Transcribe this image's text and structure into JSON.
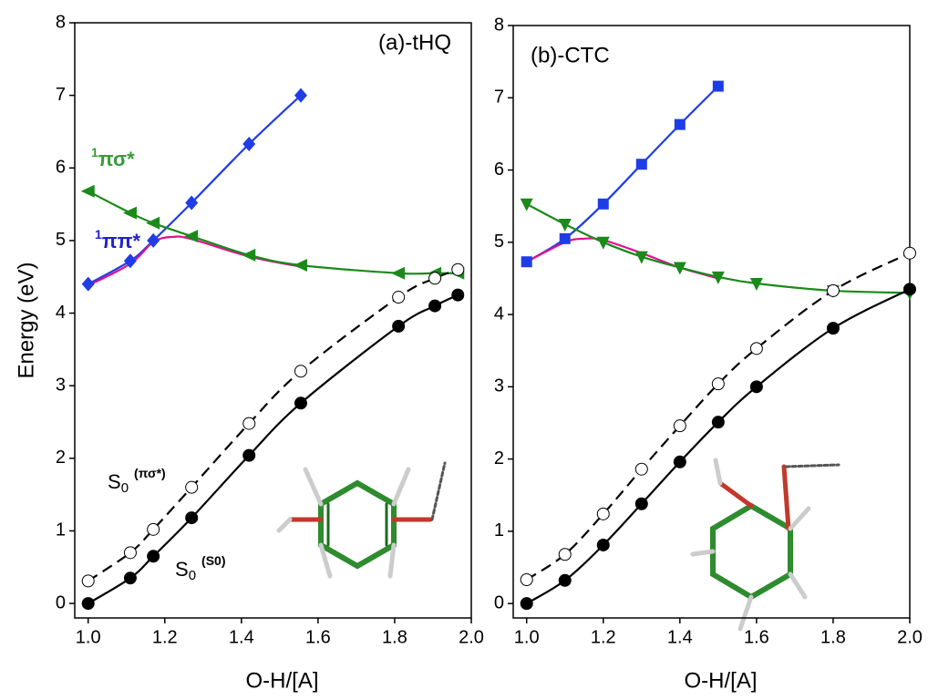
{
  "chart_data": [
    {
      "type": "line",
      "title": "(a)-tHQ",
      "xlabel": "O-H/[A]",
      "ylabel": "Energy (eV)",
      "xlim": [
        0.965,
        2.0
      ],
      "ylim": [
        -0.2,
        8
      ],
      "xticks": [
        {
          "value": 1,
          "label": "1.0"
        },
        {
          "value": 1.2,
          "label": "1.2"
        },
        {
          "value": 1.4,
          "label": "1.4"
        },
        {
          "value": 1.6,
          "label": "1.6"
        },
        {
          "value": 1.8,
          "label": "1.8"
        },
        {
          "value": 2,
          "label": "2.0"
        }
      ],
      "yticks": [
        0,
        1,
        2,
        3,
        4,
        5,
        6,
        7,
        8
      ],
      "series": [
        {
          "color": "#1f3de6",
          "marker": "diamond",
          "x": [
            1.0,
            1.11,
            1.17,
            1.27,
            1.42,
            1.555
          ],
          "values": [
            4.4,
            4.72,
            5.0,
            5.52,
            6.33,
            7.0
          ]
        },
        {
          "color": "#e0108f",
          "marker": "none",
          "x": [
            1.0,
            1.11,
            1.17,
            1.22,
            1.27,
            1.42,
            1.555
          ],
          "values": [
            4.38,
            4.68,
            4.98,
            5.05,
            5.02,
            4.78,
            4.64
          ]
        },
        {
          "color": "#1a8a1a",
          "marker": "triangle-left",
          "x": [
            1.0,
            1.11,
            1.17,
            1.27,
            1.42,
            1.555,
            1.81,
            1.905,
            1.965
          ],
          "values": [
            5.68,
            5.38,
            5.24,
            5.06,
            4.8,
            4.66,
            4.55,
            4.55,
            4.55
          ]
        },
        {
          "color": "#000000",
          "marker": "circle-open",
          "dash": true,
          "x": [
            1.0,
            1.11,
            1.17,
            1.27,
            1.42,
            1.555,
            1.81,
            1.905,
            1.965
          ],
          "values": [
            0.31,
            0.7,
            1.02,
            1.6,
            2.48,
            3.2,
            4.22,
            4.48,
            4.6
          ]
        },
        {
          "color": "#000000",
          "marker": "circle",
          "x": [
            1.0,
            1.11,
            1.17,
            1.27,
            1.42,
            1.555,
            1.81,
            1.905,
            1.965
          ],
          "values": [
            0.0,
            0.35,
            0.65,
            1.18,
            2.04,
            2.76,
            3.82,
            4.1,
            4.25
          ]
        }
      ],
      "annotations": [
        {
          "sup_before": "1",
          "text": "πσ*",
          "color": "#3a9a3a"
        },
        {
          "sup_before": "1",
          "text": "ππ*",
          "color": "#2222cc"
        },
        {
          "text": "S",
          "sub": "0",
          "sup": "(πσ*)",
          "color": "#000000"
        },
        {
          "text": "S",
          "sub": "0",
          "sup": "(S0)",
          "color": "#000000"
        }
      ]
    },
    {
      "type": "line",
      "title": "(b)-CTC",
      "xlabel": "O-H/[A]",
      "xlim": [
        0.965,
        2.0
      ],
      "ylim": [
        -0.2,
        8
      ],
      "xticks": [
        {
          "value": 1,
          "label": "1.0"
        },
        {
          "value": 1.2,
          "label": "1.2"
        },
        {
          "value": 1.4,
          "label": "1.4"
        },
        {
          "value": 1.6,
          "label": "1.6"
        },
        {
          "value": 1.8,
          "label": "1.8"
        },
        {
          "value": 2,
          "label": "2.0"
        }
      ],
      "yticks": [
        0,
        1,
        2,
        3,
        4,
        5,
        6,
        7,
        8
      ],
      "series": [
        {
          "color": "#1f3de6",
          "marker": "square",
          "x": [
            1.0,
            1.1,
            1.2,
            1.3,
            1.4,
            1.5
          ],
          "values": [
            4.73,
            5.05,
            5.53,
            6.08,
            6.63,
            7.16
          ]
        },
        {
          "color": "#e0108f",
          "marker": "none",
          "x": [
            1.0,
            1.1,
            1.15,
            1.2,
            1.3,
            1.4,
            1.5
          ],
          "values": [
            4.73,
            5.0,
            5.05,
            5.03,
            4.85,
            4.65,
            4.5
          ]
        },
        {
          "color": "#1a8a1a",
          "marker": "triangle-down",
          "x": [
            1.0,
            1.1,
            1.2,
            1.3,
            1.4,
            1.5,
            1.6,
            1.8,
            2.0
          ],
          "values": [
            5.53,
            5.25,
            5.0,
            4.8,
            4.65,
            4.52,
            4.43,
            4.33,
            4.3
          ]
        },
        {
          "color": "#000000",
          "marker": "circle-open",
          "dash": true,
          "x": [
            1.0,
            1.1,
            1.2,
            1.3,
            1.4,
            1.5,
            1.6,
            1.8,
            2.0
          ],
          "values": [
            0.33,
            0.68,
            1.24,
            1.86,
            2.46,
            3.04,
            3.53,
            4.33,
            4.85
          ]
        },
        {
          "color": "#000000",
          "marker": "circle",
          "x": [
            1.0,
            1.1,
            1.2,
            1.3,
            1.4,
            1.5,
            1.6,
            1.8,
            2.0
          ],
          "values": [
            0.0,
            0.32,
            0.81,
            1.38,
            1.96,
            2.51,
            3.0,
            3.81,
            4.35
          ]
        }
      ]
    }
  ]
}
